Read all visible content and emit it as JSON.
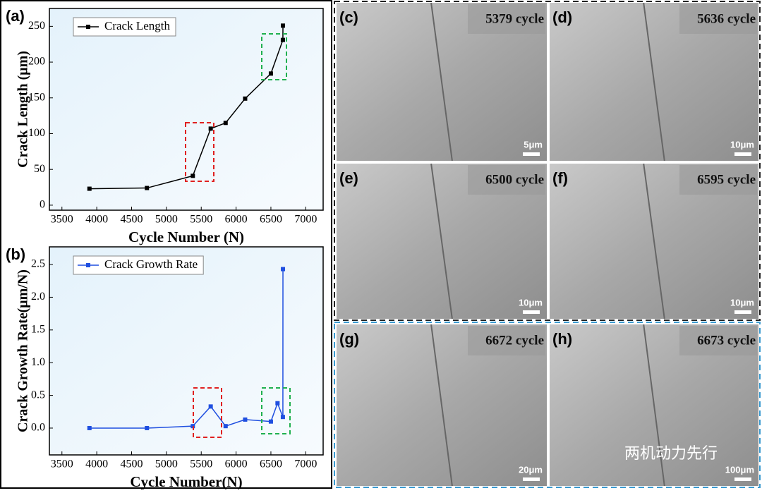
{
  "chart_data": [
    {
      "type": "line",
      "label": "(a)",
      "xlabel": "Cycle Number (N)",
      "ylabel": "Crack Length (μm)",
      "x": [
        3895,
        4720,
        5379,
        5636,
        5850,
        6130,
        6500,
        6672,
        6673
      ],
      "series": [
        {
          "name": "Crack Length",
          "color": "#000000",
          "values": [
            23,
            24,
            41,
            107,
            115,
            149,
            184,
            231,
            251
          ]
        }
      ],
      "xlim": [
        3320,
        7250
      ],
      "xticks": [
        3500,
        4000,
        4500,
        5000,
        5500,
        6000,
        6500,
        7000
      ],
      "ylim": [
        -7,
        275
      ],
      "yticks": [
        0,
        50,
        100,
        150,
        200,
        250
      ],
      "legend": "upper left"
    },
    {
      "type": "line",
      "label": "(b)",
      "xlabel": "Cycle Number(N)",
      "ylabel": "Crack Growth Rate(μm/N)",
      "x": [
        3895,
        4720,
        5379,
        5636,
        5850,
        6130,
        6500,
        6595,
        6672,
        6673
      ],
      "series": [
        {
          "name": "Crack Growth Rate",
          "color": "#1f4fe0",
          "values": [
            0.0,
            0.0,
            0.03,
            0.33,
            0.03,
            0.13,
            0.1,
            0.38,
            0.17,
            2.43
          ]
        }
      ],
      "xlim": [
        3320,
        7250
      ],
      "xticks": [
        3500,
        4000,
        4500,
        5000,
        5500,
        6000,
        6500,
        7000
      ],
      "ylim": [
        -0.41,
        2.77
      ],
      "yticks": [
        {
          "value": 0,
          "label": "0.0"
        },
        {
          "value": 0.5,
          "label": "0.5"
        },
        {
          "value": 1,
          "label": "1.0"
        },
        {
          "value": 1.5,
          "label": "1.5"
        },
        {
          "value": 2,
          "label": "2.0"
        },
        {
          "value": 2.5,
          "label": "2.5"
        }
      ],
      "legend": "upper left"
    }
  ],
  "panels": [
    {
      "label": "(c)",
      "cycle": "5379 cycle",
      "scale": "5μm"
    },
    {
      "label": "(d)",
      "cycle": "5636 cycle",
      "scale": "10μm"
    },
    {
      "label": "(e)",
      "cycle": "6500 cycle",
      "scale": "10μm"
    },
    {
      "label": "(f)",
      "cycle": "6595 cycle",
      "scale": "10μm"
    },
    {
      "label": "(g)",
      "cycle": "6672 cycle",
      "scale": "20μm"
    },
    {
      "label": "(h)",
      "cycle": "6673 cycle",
      "scale": "100μm"
    }
  ],
  "watermark": "两机动力先行"
}
